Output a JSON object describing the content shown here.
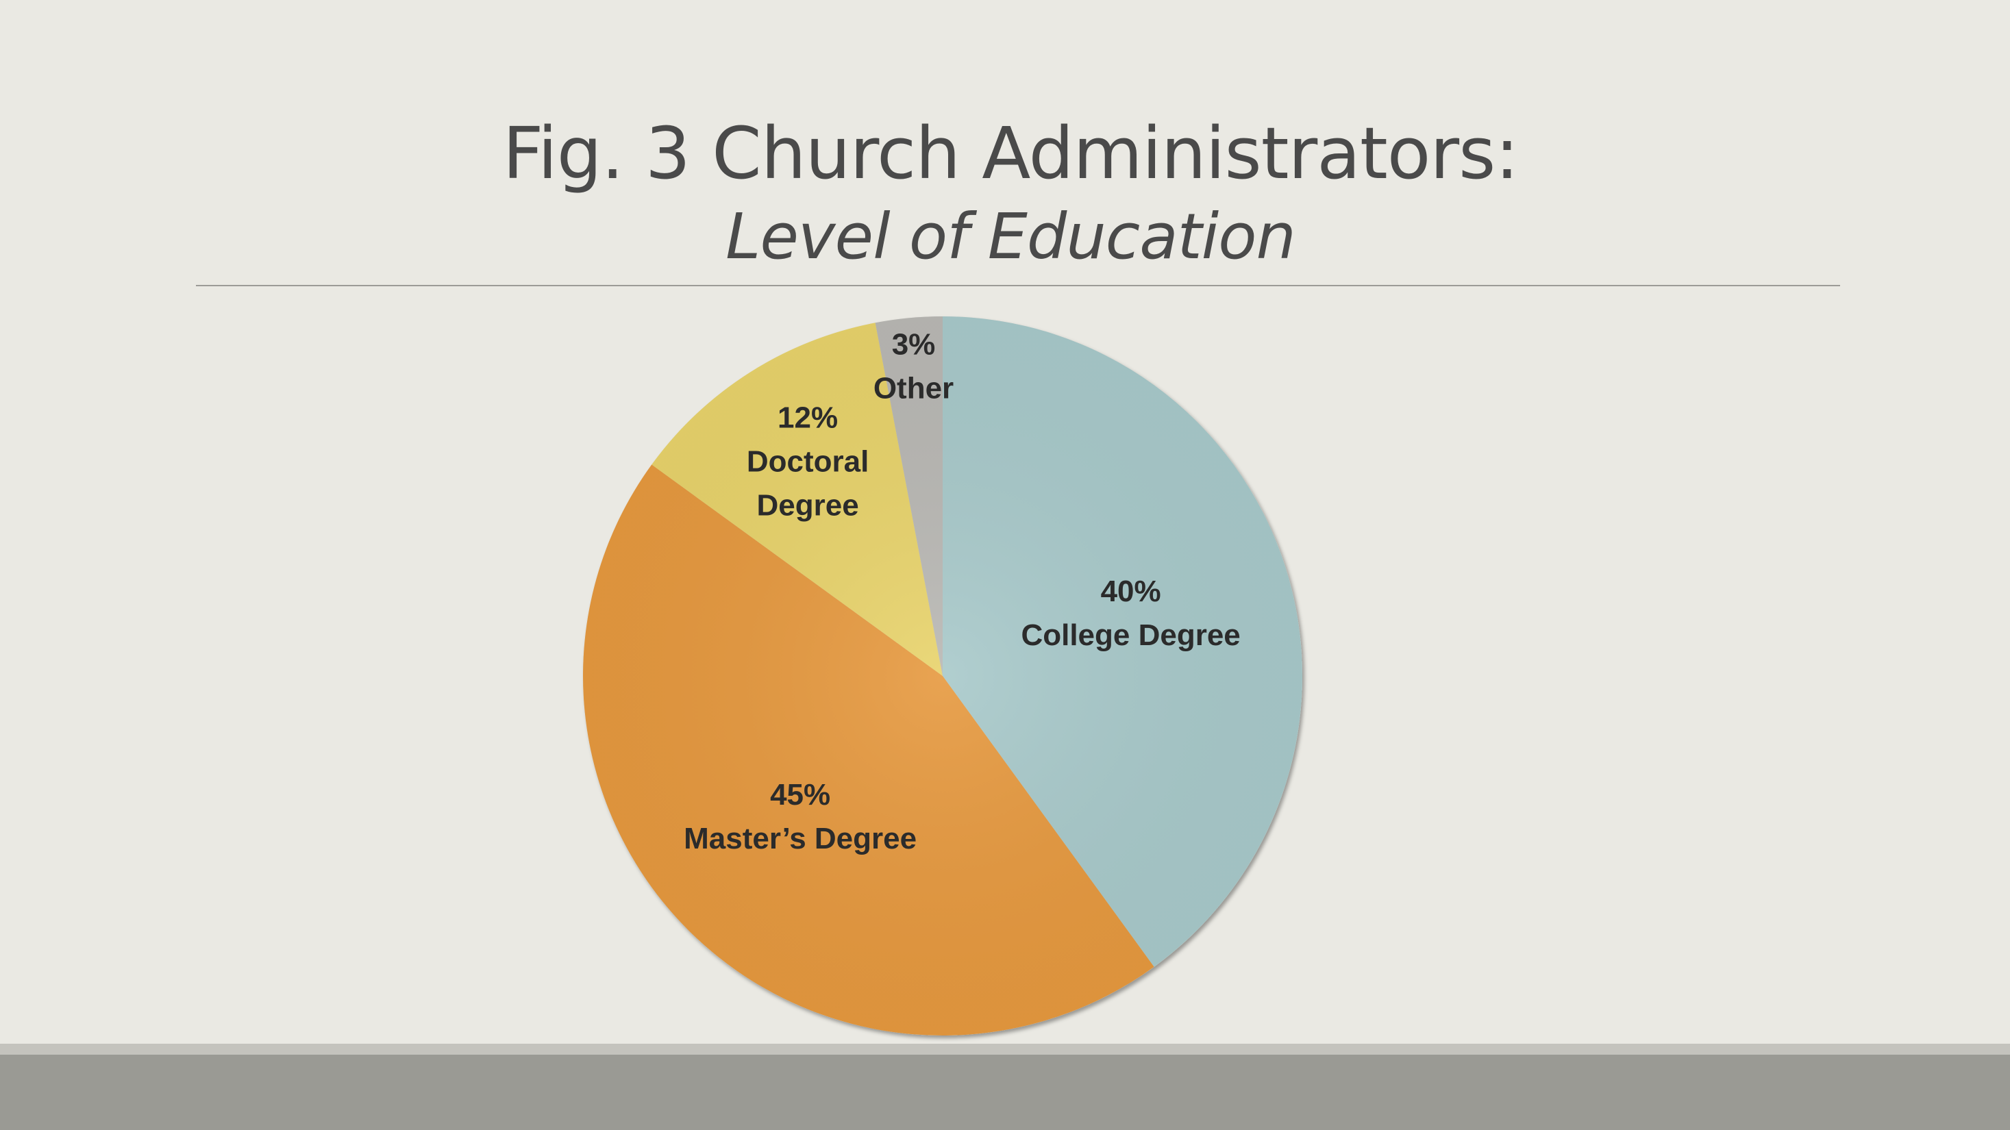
{
  "slide": {
    "title": "Fig. 3 Church Administrators:",
    "subtitle": "Level of Education"
  },
  "colors": {
    "background": "#eae9e3",
    "college": "#a8c9ca",
    "masters": "#e6993f",
    "doctoral": "#e8d36b",
    "other": "#b9b8b4",
    "footer": "#9a9a94"
  },
  "chart_data": {
    "type": "pie",
    "title": "Fig. 3 Church Administrators: Level of Education",
    "start_angle_deg": 0,
    "direction": "clockwise",
    "slices": [
      {
        "name": "College Degree",
        "value": 40,
        "percent_label": "40%",
        "label_lines": [
          "College Degree"
        ],
        "color": "#a8c9ca"
      },
      {
        "name": "Master’s Degree",
        "value": 45,
        "percent_label": "45%",
        "label_lines": [
          "Master’s Degree"
        ],
        "color": "#e6993f"
      },
      {
        "name": "Doctoral Degree",
        "value": 12,
        "percent_label": "12%",
        "label_lines": [
          "Doctoral",
          "Degree"
        ],
        "color": "#e8d36b"
      },
      {
        "name": "Other",
        "value": 3,
        "percent_label": "3%",
        "label_lines": [
          "Other"
        ],
        "color": "#b9b8b4"
      }
    ]
  }
}
